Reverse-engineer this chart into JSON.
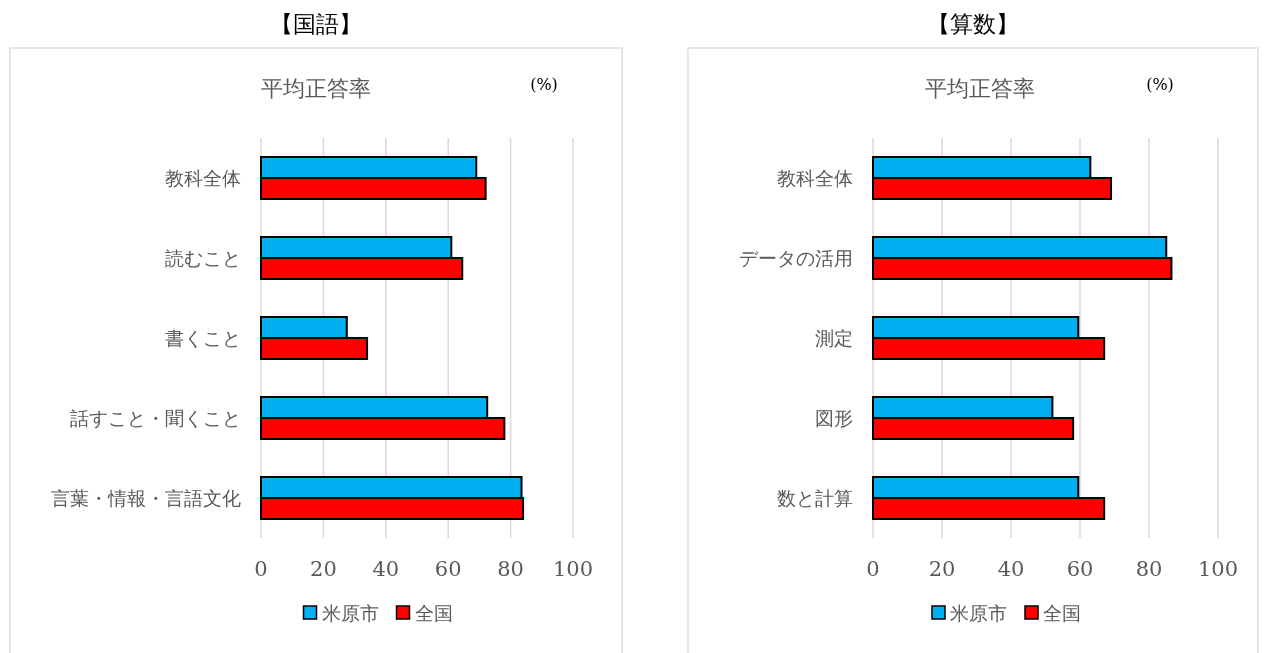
{
  "chart_data": [
    {
      "type": "bar",
      "orientation": "horizontal",
      "title": "【国語】",
      "subtitle": "平均正答率",
      "annotations": [
        "(%)"
      ],
      "categories": [
        "教科全体",
        "読むこと",
        "書くこと",
        "話すこと・聞くこと",
        "言葉・情報・言語文化"
      ],
      "series": [
        {
          "name": "米原市",
          "color": "#00b0f0",
          "values": [
            69,
            61,
            27.5,
            72.5,
            83.5
          ]
        },
        {
          "name": "全国",
          "color": "#ff0000",
          "values": [
            72,
            64.5,
            34,
            78,
            84
          ]
        }
      ],
      "xlim": [
        0,
        100
      ],
      "xticks": [
        0,
        20,
        40,
        60,
        80,
        100
      ],
      "grid": "x",
      "legend": "bottom"
    },
    {
      "type": "bar",
      "orientation": "horizontal",
      "title": "【算数】",
      "subtitle": "平均正答率",
      "annotations": [
        "(%)"
      ],
      "categories": [
        "教科全体",
        "データの活用",
        "測定",
        "図形",
        "数と計算"
      ],
      "series": [
        {
          "name": "米原市",
          "color": "#00b0f0",
          "values": [
            63,
            85,
            59.5,
            52,
            59.5
          ]
        },
        {
          "name": "全国",
          "color": "#ff0000",
          "values": [
            69,
            86.5,
            67,
            58,
            67
          ]
        }
      ],
      "xlim": [
        0,
        100
      ],
      "xticks": [
        0,
        20,
        40,
        60,
        80,
        100
      ],
      "grid": "x",
      "legend": "bottom"
    }
  ]
}
